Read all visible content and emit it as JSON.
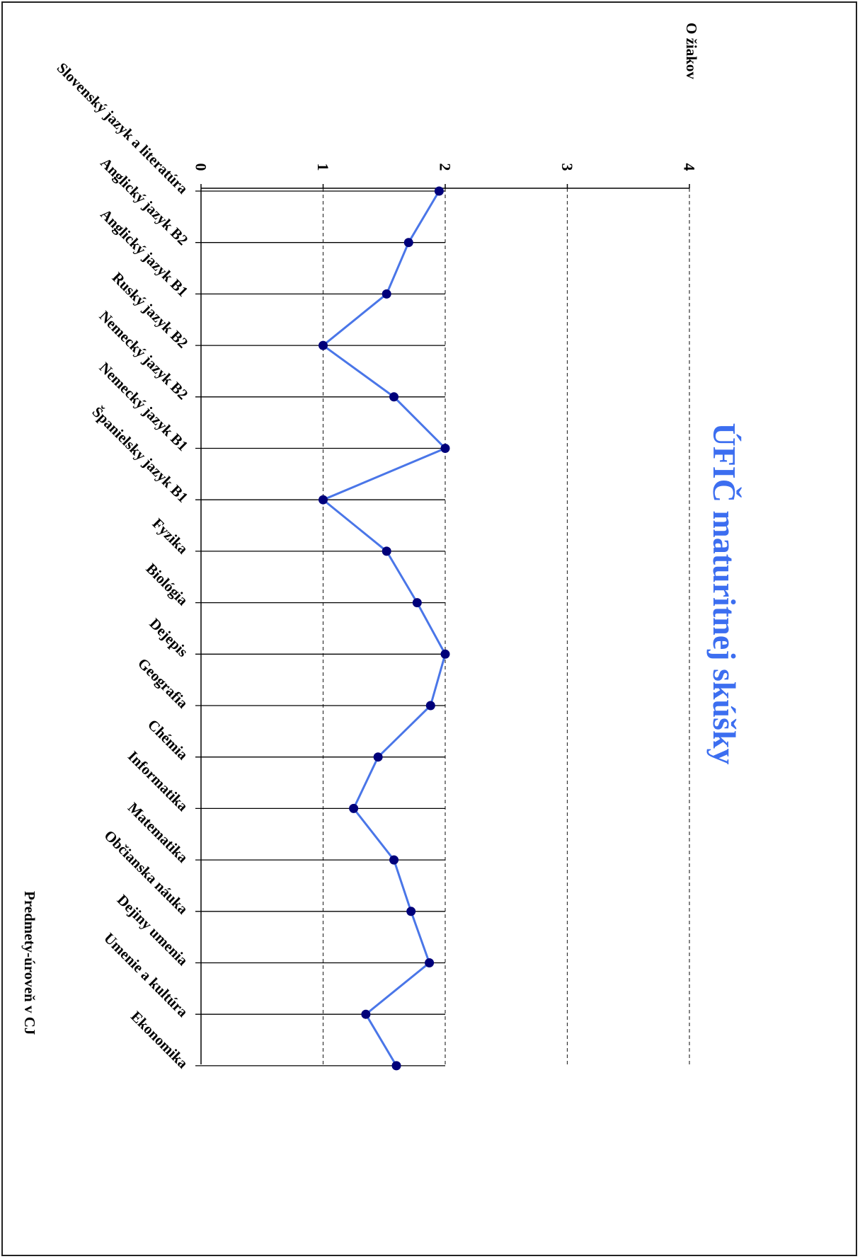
{
  "chart_data": {
    "type": "line",
    "title": "ÚFIČ maturitnej skúšky",
    "xlabel": "Predmety-úroveň v CJ",
    "ylabel": "O žiakov",
    "ylim": [
      0,
      4
    ],
    "yticks": [
      "0",
      "1",
      "2",
      "3",
      "4"
    ],
    "grid": true,
    "categories": [
      "Slovenský jazyk a literatúra",
      "Anglický jazyk B2",
      "Anglický jazyk B1",
      "Ruský jazyk B2",
      "Nemecký jazyk B2",
      "Nemecký jazyk B1",
      "Španielsky jazyk B1",
      "Fyzika",
      "Biológia",
      "Dejepis",
      "Geografia",
      "Chémia",
      "Informatika",
      "Matematika",
      "Občianska náuka",
      "Dejiny umenia",
      "Umenie a kultúra",
      "Ekonomika"
    ],
    "series": [
      {
        "values": [
          1.95,
          1.7,
          1.52,
          1.0,
          1.58,
          2.0,
          1.0,
          1.52,
          1.77,
          2.0,
          1.88,
          1.45,
          1.25,
          1.58,
          1.72,
          1.87,
          1.35,
          1.6
        ]
      }
    ],
    "colors": {
      "line": "#4a76e8",
      "marker": "#00007a",
      "title": "#3c6ef0"
    }
  }
}
